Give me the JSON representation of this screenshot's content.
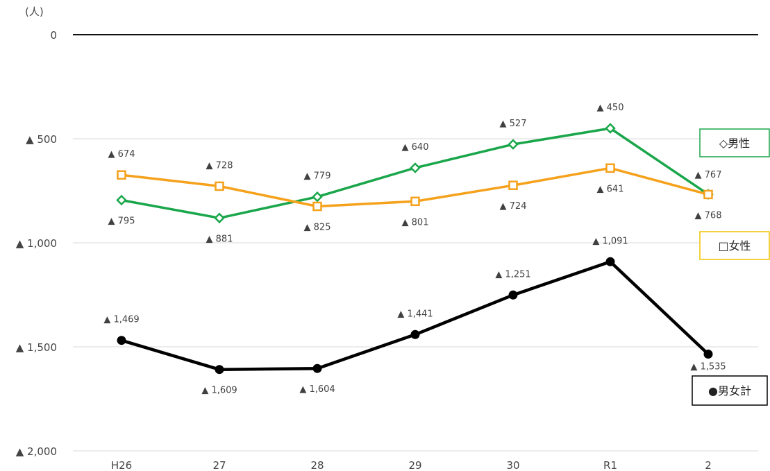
{
  "chart_data": {
    "type": "line",
    "unit_label": "(人)",
    "categories": [
      "H26",
      "27",
      "28",
      "29",
      "30",
      "R1",
      "2"
    ],
    "y_tick_labels": [
      "0",
      "▲ 500",
      "▲ 1,000",
      "▲ 1,500",
      "▲ 2,000"
    ],
    "y_tick_values": [
      0,
      -500,
      -1000,
      -1500,
      -2000
    ],
    "ylim": [
      -2000,
      0
    ],
    "grid": true,
    "series": [
      {
        "name": "◇男性",
        "color": "#1aa64a",
        "marker": "diamond",
        "values": [
          -795,
          -881,
          -779,
          -640,
          -527,
          -450,
          -767
        ],
        "labels": [
          "▲ 795",
          "▲ 881",
          "▲ 779",
          "▲ 640",
          "▲ 527",
          "▲ 450",
          "▲ 767"
        ]
      },
      {
        "name": "□女性",
        "color": "#f5a11b",
        "marker": "square",
        "values": [
          -674,
          -728,
          -825,
          -801,
          -724,
          -641,
          -768
        ],
        "labels": [
          "▲ 674",
          "▲ 728",
          "▲ 825",
          "▲ 801",
          "▲ 724",
          "▲ 641",
          "▲ 768"
        ]
      },
      {
        "name": "●男女計",
        "color": "#000000",
        "marker": "circle",
        "values": [
          -1469,
          -1609,
          -1604,
          -1441,
          -1251,
          -1091,
          -1535
        ],
        "labels": [
          "▲ 1,469",
          "▲ 1,609",
          "▲ 1,604",
          "▲ 1,441",
          "▲ 1,251",
          "▲ 1,091",
          "▲ 1,535"
        ]
      }
    ]
  }
}
